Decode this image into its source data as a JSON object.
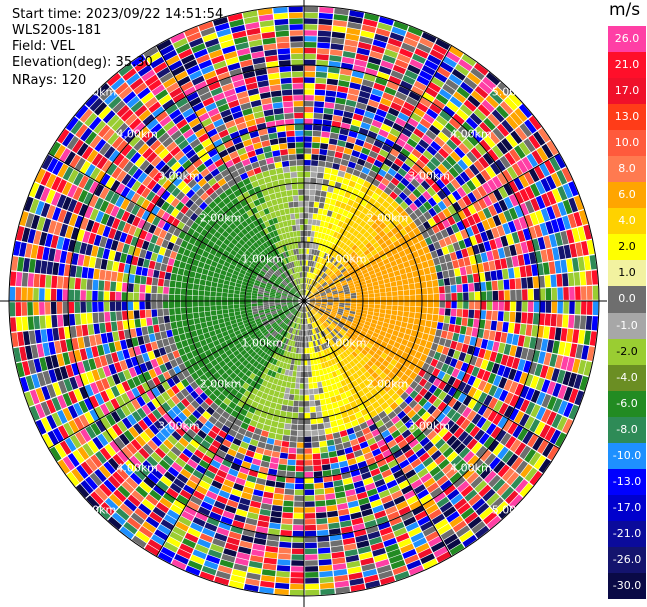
{
  "info": {
    "start_time": "Start time: 2023/09/22 14:51:54",
    "instrument": "WLS200s-181",
    "field": "Field: VEL",
    "elevation": "Elevation(deg): 35.30",
    "nrays": "NRays: 120"
  },
  "colorbar": {
    "unit": "m/s",
    "ticks": [
      "26.0",
      "21.0",
      "17.0",
      "13.0",
      "10.0",
      "8.0",
      "6.0",
      "4.0",
      "2.0",
      "1.0",
      "0.0",
      "-1.0",
      "-2.0",
      "-4.0",
      "-6.0",
      "-8.0",
      "-10.0",
      "-13.0",
      "-17.0",
      "-21.0",
      "-26.0",
      "-30.0"
    ],
    "colors": [
      "#ff3fa5",
      "#ff0f2a",
      "#f0102a",
      "#ff3c18",
      "#ff5a3c",
      "#ff7a50",
      "#ffa500",
      "#ffd200",
      "#ffff00",
      "#f2f2a0",
      "#6e6e6e",
      "#a7a7a7",
      "#9acd32",
      "#6b8e23",
      "#228b22",
      "#2e8b57",
      "#1e90ff",
      "#0000ff",
      "#0000cd",
      "#0b0b9b",
      "#14146e",
      "#0a0a46"
    ],
    "text_colors": [
      "#ffffff",
      "#ffffff",
      "#ffffff",
      "#ffffff",
      "#ffffff",
      "#ffffff",
      "#ffffff",
      "#ffffff",
      "#000000",
      "#000000",
      "#ffffff",
      "#ffffff",
      "#000000",
      "#ffffff",
      "#ffffff",
      "#ffffff",
      "#ffffff",
      "#ffffff",
      "#ffffff",
      "#ffffff",
      "#ffffff",
      "#ffffff"
    ]
  },
  "chart_data": {
    "type": "heatmap",
    "projection": "polar PPI",
    "field": "VEL",
    "elevation_deg": 35.3,
    "nrays": 120,
    "range_ring_labels_km": [
      "1.00km",
      "2.00km",
      "3.00km",
      "4.00km",
      "5.00km"
    ],
    "range_rings_km": [
      1,
      2,
      3,
      4,
      5
    ],
    "spokes": 12,
    "value_range": [
      -30.0,
      26.0
    ],
    "unit": "m/s"
  }
}
